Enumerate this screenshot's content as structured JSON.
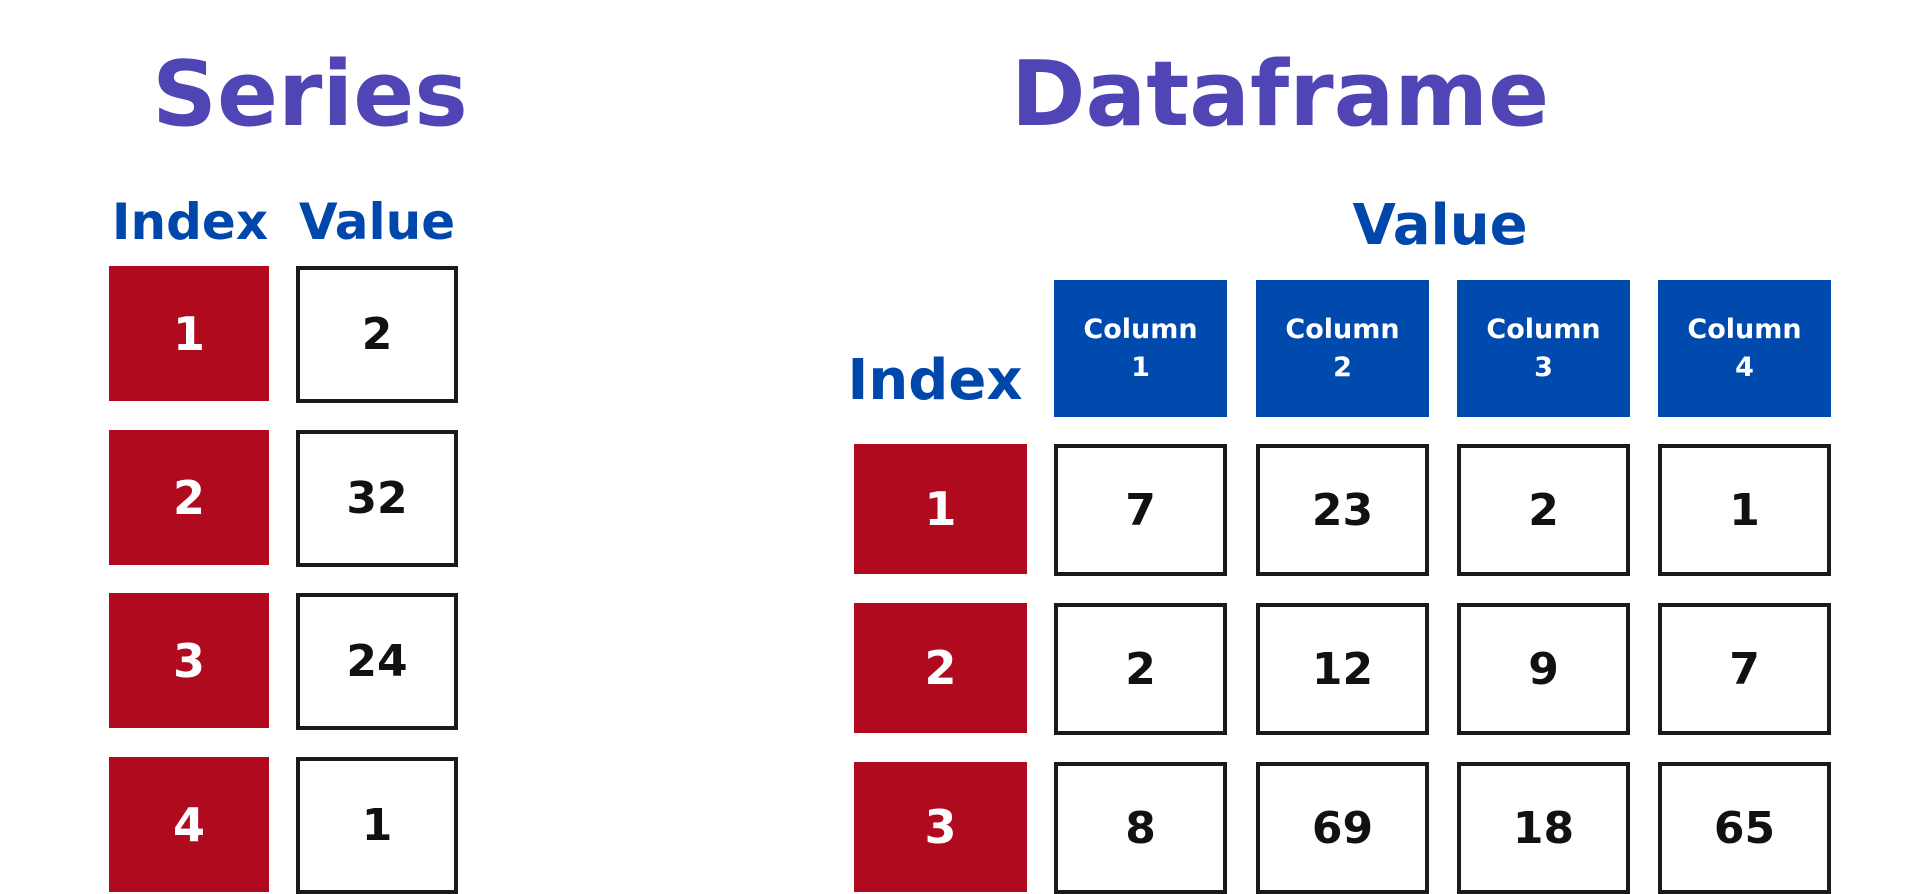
{
  "colors": {
    "title": "#4f45b5",
    "label": "#0047ab",
    "index_fill": "#af0a1e",
    "column_fill": "#004aad",
    "cell_border": "#1a1a1a"
  },
  "series": {
    "title": "Series",
    "index_label": "Index",
    "value_label": "Value",
    "rows": [
      {
        "index": "1",
        "value": "2"
      },
      {
        "index": "2",
        "value": "32"
      },
      {
        "index": "3",
        "value": "24"
      },
      {
        "index": "4",
        "value": "1"
      }
    ]
  },
  "dataframe": {
    "title": "Dataframe",
    "value_label": "Value",
    "index_label": "Index",
    "columns": [
      {
        "line1": "Column",
        "line2": "1"
      },
      {
        "line1": "Column",
        "line2": "2"
      },
      {
        "line1": "Column",
        "line2": "3"
      },
      {
        "line1": "Column",
        "line2": "4"
      }
    ],
    "rows": [
      {
        "index": "1",
        "values": [
          "7",
          "23",
          "2",
          "1"
        ]
      },
      {
        "index": "2",
        "values": [
          "2",
          "12",
          "9",
          "7"
        ]
      },
      {
        "index": "3",
        "values": [
          "8",
          "69",
          "18",
          "65"
        ]
      }
    ]
  }
}
